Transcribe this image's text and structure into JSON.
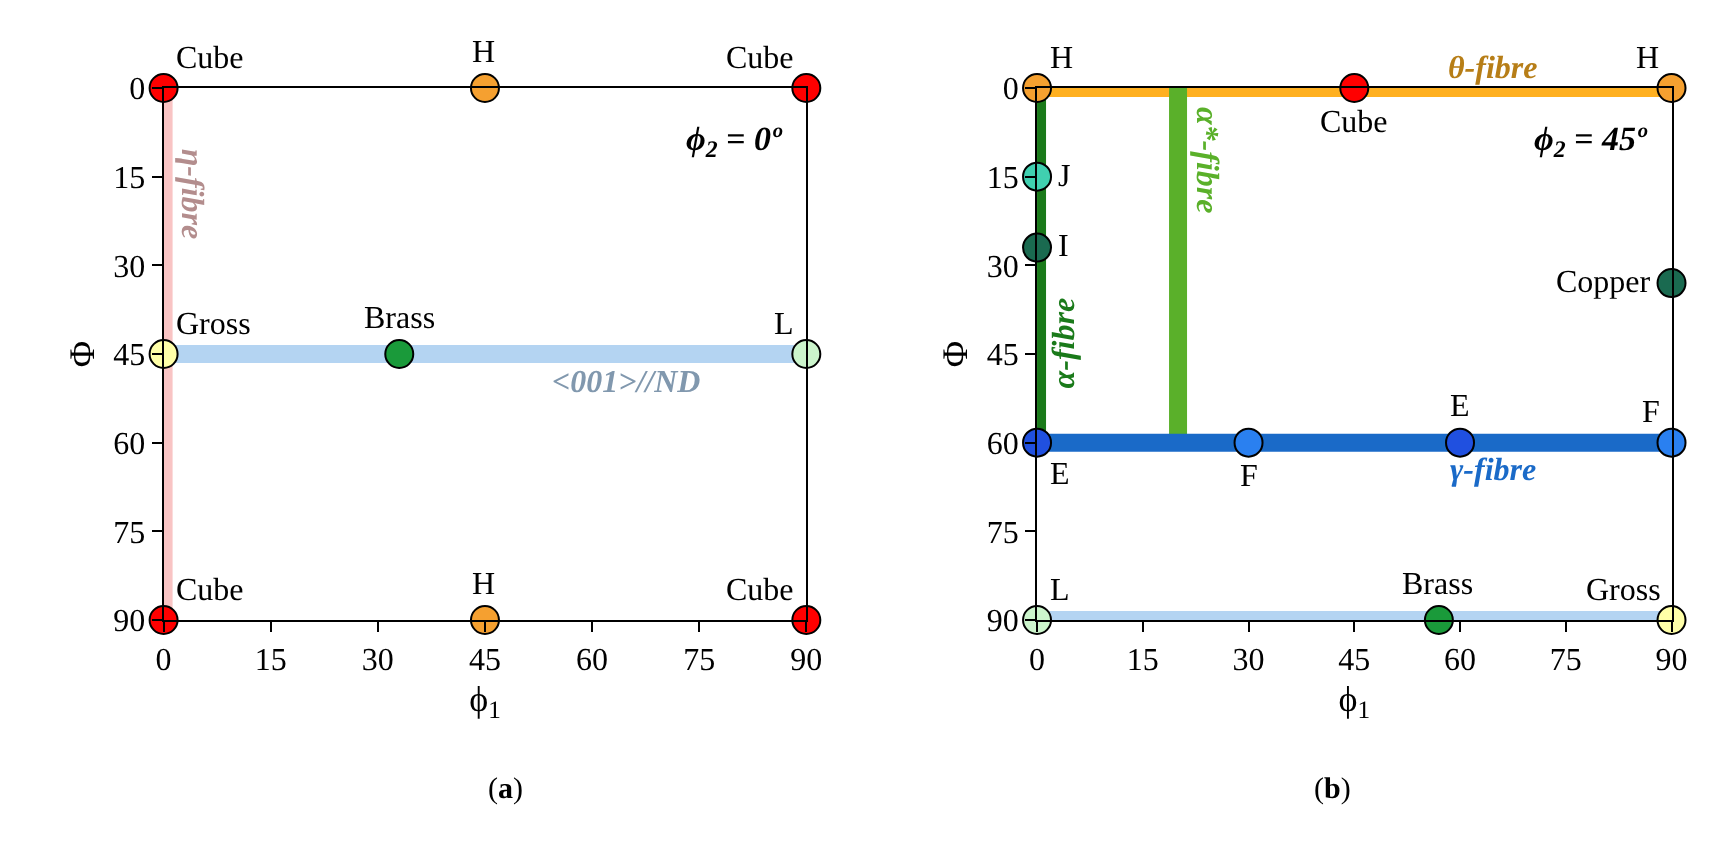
{
  "chart_data": [
    {
      "type": "scatter",
      "title": "ϕ$_{2}$ = 0º",
      "xlabel": "ϕ$_{1}$",
      "ylabel": "Φ",
      "xlim": [
        0,
        90
      ],
      "ylim": [
        90,
        0
      ],
      "xticks": [
        0,
        15,
        30,
        45,
        60,
        75,
        90
      ],
      "yticks": [
        0,
        15,
        30,
        45,
        60,
        75,
        90
      ],
      "grid": false,
      "marker": "circle",
      "series": [
        {
          "type": "line",
          "marker": "none",
          "name": "η-fibre",
          "color": "#f9c4c4",
          "x": [
            0,
            0
          ],
          "values": [
            0,
            90
          ]
        },
        {
          "type": "line",
          "marker": "none",
          "name": "<001>//ND",
          "color": "#b4d4f2",
          "x": [
            0,
            90
          ],
          "values": [
            45,
            45
          ]
        },
        {
          "x": [
            0,
            45,
            90,
            0,
            33,
            90,
            0,
            45,
            90
          ],
          "values": [
            0,
            0,
            0,
            45,
            45,
            45,
            90,
            90,
            90
          ],
          "colors": [
            "#ff0000",
            "#f5a030",
            "#ff0000",
            "#ffffa8",
            "#1a9a3a",
            "#ccf5cc",
            "#ff0000",
            "#f5a030",
            "#ff0000"
          ]
        }
      ],
      "annotations": [
        {
          "text": "Cube",
          "x": 0,
          "y": 0
        },
        {
          "text": "H",
          "x": 45,
          "y": 0
        },
        {
          "text": "Cube",
          "x": 90,
          "y": 0
        },
        {
          "text": "Gross",
          "x": 0,
          "y": 45
        },
        {
          "text": "Brass",
          "x": 33,
          "y": 45
        },
        {
          "text": "L",
          "x": 90,
          "y": 45
        },
        {
          "text": "Cube",
          "x": 0,
          "y": 90
        },
        {
          "text": "H",
          "x": 45,
          "y": 90
        },
        {
          "text": "Cube",
          "x": 90,
          "y": 90
        },
        "(a)"
      ]
    },
    {
      "type": "scatter",
      "title": "ϕ$_{2}$ = 45º",
      "xlabel": "ϕ$_{1}$",
      "ylabel": "Φ",
      "xlim": [
        0,
        90
      ],
      "ylim": [
        90,
        0
      ],
      "xticks": [
        0,
        15,
        30,
        45,
        60,
        75,
        90
      ],
      "yticks": [
        0,
        15,
        30,
        45,
        60,
        75,
        90
      ],
      "grid": false,
      "marker": "circle",
      "series": [
        {
          "type": "line",
          "marker": "none",
          "name": "θ-fibre",
          "color": "#ffb020",
          "x": [
            0,
            90
          ],
          "values": [
            0,
            0
          ]
        },
        {
          "type": "line",
          "marker": "none",
          "name": "α-fibre",
          "color": "#1a7a1a",
          "x": [
            0,
            0
          ],
          "values": [
            0,
            60
          ]
        },
        {
          "type": "line",
          "marker": "none",
          "name": "α*-fibre",
          "color": "#5ab02a",
          "x": [
            20,
            20
          ],
          "values": [
            0,
            60
          ]
        },
        {
          "type": "line",
          "marker": "none",
          "name": "γ-fibre",
          "color": "#1a6ac8",
          "x": [
            0,
            90
          ],
          "values": [
            60,
            60
          ]
        },
        {
          "type": "line",
          "marker": "none",
          "color": "#b4d4f2",
          "x": [
            0,
            90
          ],
          "values": [
            90,
            90
          ]
        },
        {
          "x": [
            0,
            45,
            90,
            0,
            0,
            90,
            0,
            30,
            60,
            90,
            0,
            57,
            90
          ],
          "values": [
            0,
            0,
            0,
            15,
            27,
            33,
            60,
            60,
            60,
            60,
            90,
            90,
            90
          ],
          "colors": [
            "#f5a030",
            "#ff0000",
            "#f5a030",
            "#40d0b0",
            "#1a6a50",
            "#1a6a50",
            "#2050e0",
            "#2a80f0",
            "#2050e0",
            "#2a80f0",
            "#ccf5cc",
            "#1a9a3a",
            "#ffffa8"
          ]
        }
      ],
      "annotations": [
        {
          "text": "H",
          "x": 0,
          "y": 0
        },
        {
          "text": "Cube",
          "x": 45,
          "y": 0
        },
        {
          "text": "H",
          "x": 90,
          "y": 0
        },
        {
          "text": "J",
          "x": 0,
          "y": 15
        },
        {
          "text": "I",
          "x": 0,
          "y": 27
        },
        {
          "text": "Copper",
          "x": 90,
          "y": 33
        },
        {
          "text": "E",
          "x": 0,
          "y": 60
        },
        {
          "text": "F",
          "x": 30,
          "y": 60
        },
        {
          "text": "E",
          "x": 60,
          "y": 60
        },
        {
          "text": "F",
          "x": 90,
          "y": 60
        },
        {
          "text": "L",
          "x": 0,
          "y": 90
        },
        {
          "text": "Brass",
          "x": 57,
          "y": 90
        },
        {
          "text": "Gross",
          "x": 90,
          "y": 90
        },
        "(b)"
      ]
    }
  ]
}
